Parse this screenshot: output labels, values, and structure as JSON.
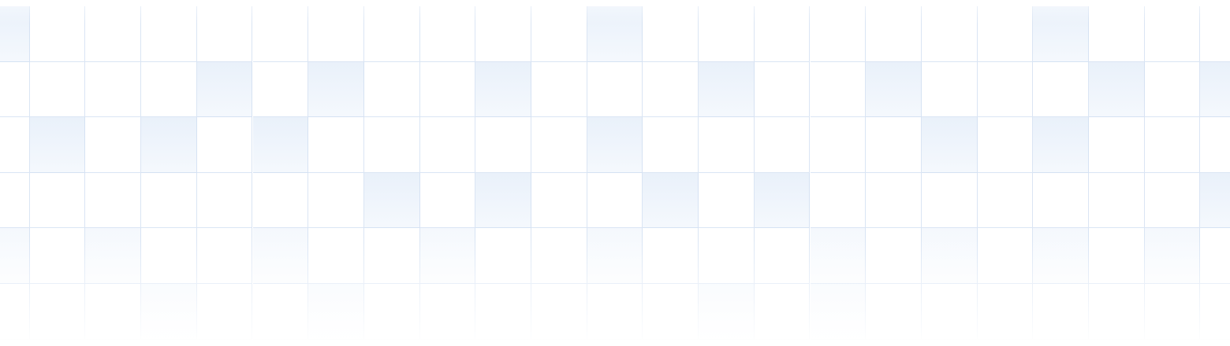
{
  "background": {
    "pattern": "grid",
    "columns": 23,
    "rows": 6,
    "line_color": "#d6e2f2",
    "tint_color": "#eef4fb",
    "base_color": "#ffffff",
    "tinted_cells": [
      [
        0,
        0
      ],
      [
        11,
        0
      ],
      [
        19,
        0
      ],
      [
        4,
        1
      ],
      [
        6,
        1
      ],
      [
        9,
        1
      ],
      [
        13,
        1
      ],
      [
        16,
        1
      ],
      [
        20,
        1
      ],
      [
        22,
        1
      ],
      [
        1,
        2
      ],
      [
        3,
        2
      ],
      [
        5,
        2
      ],
      [
        11,
        2
      ],
      [
        17,
        2
      ],
      [
        19,
        2
      ],
      [
        7,
        3
      ],
      [
        9,
        3
      ],
      [
        12,
        3
      ],
      [
        14,
        3
      ],
      [
        22,
        3
      ],
      [
        0,
        4
      ],
      [
        2,
        4
      ],
      [
        5,
        4
      ],
      [
        8,
        4
      ],
      [
        11,
        4
      ],
      [
        15,
        4
      ],
      [
        17,
        4
      ],
      [
        19,
        4
      ],
      [
        21,
        4
      ],
      [
        3,
        5
      ],
      [
        6,
        5
      ],
      [
        13,
        5
      ],
      [
        15,
        5
      ]
    ]
  }
}
